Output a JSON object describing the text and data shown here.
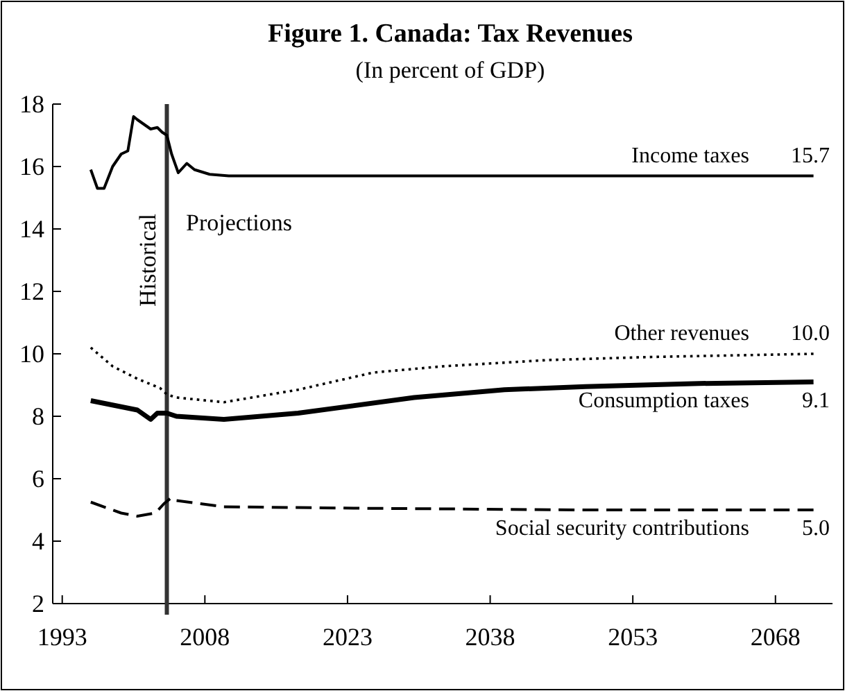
{
  "chart_data": {
    "type": "line",
    "title": "Figure 1. Canada: Tax Revenues",
    "subtitle": "(In percent of GDP)",
    "xlim": [
      1992,
      2074
    ],
    "xticks": [
      1993,
      2008,
      2023,
      2038,
      2053,
      2068
    ],
    "ylim": [
      2,
      18
    ],
    "yticks": [
      2,
      4,
      6,
      8,
      10,
      12,
      14,
      16,
      18
    ],
    "grid": false,
    "marker": "none",
    "ref_lines": [
      {
        "axis": "x",
        "value": 2004,
        "label": "Historical",
        "color": "#333333"
      }
    ],
    "annotations": [
      "Projections"
    ],
    "series": [
      {
        "name": "Income taxes",
        "color": "#000000",
        "line_style": "solid",
        "x": [
          1996.0,
          1996.7,
          1997.4,
          1998.3,
          1999.2,
          1999.9,
          2000.5,
          2000.9,
          2002.3,
          2003.0,
          2003.5,
          2004.0,
          2004.5,
          2005.2,
          2006.1,
          2006.9,
          2008.5,
          2010.5,
          2072
        ],
        "values": [
          15.9,
          15.3,
          15.3,
          16.0,
          16.4,
          16.5,
          17.6,
          17.5,
          17.2,
          17.25,
          17.1,
          17.0,
          16.4,
          15.8,
          16.1,
          15.9,
          15.75,
          15.7,
          15.7
        ],
        "value_labels": [
          null,
          null,
          null,
          null,
          null,
          null,
          null,
          null,
          null,
          null,
          null,
          null,
          null,
          null,
          null,
          null,
          null,
          null,
          "15.7"
        ]
      },
      {
        "name": "Other revenues",
        "color": "#000000",
        "line_style": "dotted",
        "x": [
          1996.0,
          1998.3,
          2000.9,
          2003.3,
          2004.0,
          2005.0,
          2010.0,
          2017.8,
          2025.7,
          2033.0,
          2044.0,
          2055.0,
          2072
        ],
        "values": [
          10.2,
          9.6,
          9.2,
          8.9,
          8.7,
          8.6,
          8.45,
          8.85,
          9.4,
          9.6,
          9.8,
          9.9,
          10.0
        ],
        "value_labels": [
          null,
          null,
          null,
          null,
          null,
          null,
          null,
          null,
          null,
          null,
          null,
          null,
          "10.0"
        ]
      },
      {
        "name": "Consumption taxes",
        "color": "#000000",
        "line_style": "solid",
        "x": [
          1996.0,
          2000.9,
          2002.3,
          2003.0,
          2004.0,
          2005.0,
          2010.0,
          2017.8,
          2030.0,
          2039.5,
          2048.0,
          2060.0,
          2072
        ],
        "values": [
          8.5,
          8.2,
          7.9,
          8.1,
          8.1,
          8.0,
          7.9,
          8.1,
          8.6,
          8.85,
          8.95,
          9.05,
          9.1
        ],
        "value_labels": [
          null,
          null,
          null,
          null,
          null,
          null,
          null,
          null,
          null,
          null,
          null,
          null,
          "9.1"
        ]
      },
      {
        "name": "Social security contributions",
        "color": "#000000",
        "line_style": "dashed",
        "x": [
          1996.0,
          1999.2,
          2000.9,
          2002.8,
          2003.7,
          2004.5,
          2005.0,
          2010.0,
          2025.6,
          2048.0,
          2072
        ],
        "values": [
          5.25,
          4.9,
          4.8,
          4.9,
          5.2,
          5.4,
          5.3,
          5.1,
          5.05,
          5.0,
          5.0
        ],
        "value_labels": [
          null,
          null,
          null,
          null,
          null,
          null,
          null,
          null,
          null,
          null,
          "5.0"
        ]
      }
    ]
  }
}
